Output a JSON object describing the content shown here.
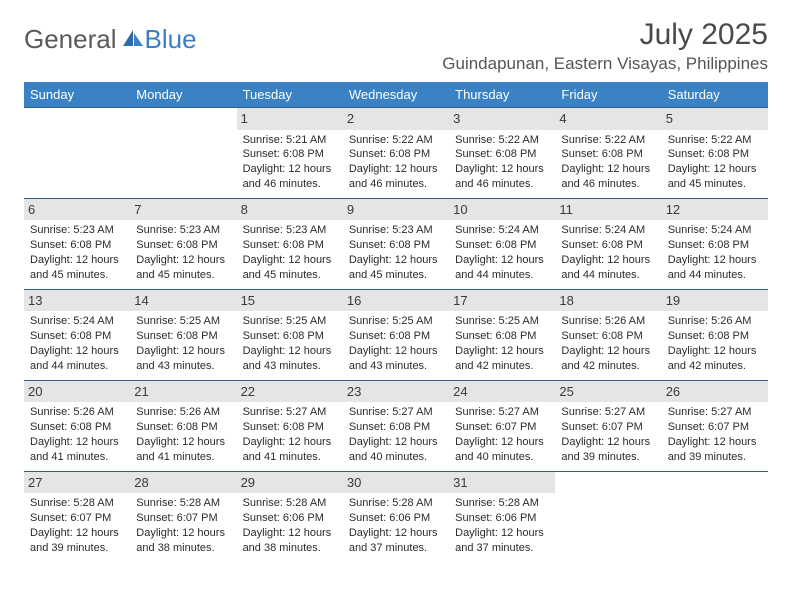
{
  "logo": {
    "text_a": "General",
    "text_b": "Blue"
  },
  "title": "July 2025",
  "location": "Guindapunan, Eastern Visayas, Philippines",
  "colors": {
    "header_bg": "#3b82c4",
    "header_text": "#ffffff",
    "row_border": "#2f5f8a",
    "daynum_bg": "#e5e5e5",
    "text": "#2b2b2b",
    "logo_gray": "#5a5a5a",
    "logo_blue": "#3b7fc4"
  },
  "day_headers": [
    "Sunday",
    "Monday",
    "Tuesday",
    "Wednesday",
    "Thursday",
    "Friday",
    "Saturday"
  ],
  "weeks": [
    [
      null,
      null,
      {
        "n": "1",
        "sr": "Sunrise: 5:21 AM",
        "ss": "Sunset: 6:08 PM",
        "dl": "Daylight: 12 hours and 46 minutes."
      },
      {
        "n": "2",
        "sr": "Sunrise: 5:22 AM",
        "ss": "Sunset: 6:08 PM",
        "dl": "Daylight: 12 hours and 46 minutes."
      },
      {
        "n": "3",
        "sr": "Sunrise: 5:22 AM",
        "ss": "Sunset: 6:08 PM",
        "dl": "Daylight: 12 hours and 46 minutes."
      },
      {
        "n": "4",
        "sr": "Sunrise: 5:22 AM",
        "ss": "Sunset: 6:08 PM",
        "dl": "Daylight: 12 hours and 46 minutes."
      },
      {
        "n": "5",
        "sr": "Sunrise: 5:22 AM",
        "ss": "Sunset: 6:08 PM",
        "dl": "Daylight: 12 hours and 45 minutes."
      }
    ],
    [
      {
        "n": "6",
        "sr": "Sunrise: 5:23 AM",
        "ss": "Sunset: 6:08 PM",
        "dl": "Daylight: 12 hours and 45 minutes."
      },
      {
        "n": "7",
        "sr": "Sunrise: 5:23 AM",
        "ss": "Sunset: 6:08 PM",
        "dl": "Daylight: 12 hours and 45 minutes."
      },
      {
        "n": "8",
        "sr": "Sunrise: 5:23 AM",
        "ss": "Sunset: 6:08 PM",
        "dl": "Daylight: 12 hours and 45 minutes."
      },
      {
        "n": "9",
        "sr": "Sunrise: 5:23 AM",
        "ss": "Sunset: 6:08 PM",
        "dl": "Daylight: 12 hours and 45 minutes."
      },
      {
        "n": "10",
        "sr": "Sunrise: 5:24 AM",
        "ss": "Sunset: 6:08 PM",
        "dl": "Daylight: 12 hours and 44 minutes."
      },
      {
        "n": "11",
        "sr": "Sunrise: 5:24 AM",
        "ss": "Sunset: 6:08 PM",
        "dl": "Daylight: 12 hours and 44 minutes."
      },
      {
        "n": "12",
        "sr": "Sunrise: 5:24 AM",
        "ss": "Sunset: 6:08 PM",
        "dl": "Daylight: 12 hours and 44 minutes."
      }
    ],
    [
      {
        "n": "13",
        "sr": "Sunrise: 5:24 AM",
        "ss": "Sunset: 6:08 PM",
        "dl": "Daylight: 12 hours and 44 minutes."
      },
      {
        "n": "14",
        "sr": "Sunrise: 5:25 AM",
        "ss": "Sunset: 6:08 PM",
        "dl": "Daylight: 12 hours and 43 minutes."
      },
      {
        "n": "15",
        "sr": "Sunrise: 5:25 AM",
        "ss": "Sunset: 6:08 PM",
        "dl": "Daylight: 12 hours and 43 minutes."
      },
      {
        "n": "16",
        "sr": "Sunrise: 5:25 AM",
        "ss": "Sunset: 6:08 PM",
        "dl": "Daylight: 12 hours and 43 minutes."
      },
      {
        "n": "17",
        "sr": "Sunrise: 5:25 AM",
        "ss": "Sunset: 6:08 PM",
        "dl": "Daylight: 12 hours and 42 minutes."
      },
      {
        "n": "18",
        "sr": "Sunrise: 5:26 AM",
        "ss": "Sunset: 6:08 PM",
        "dl": "Daylight: 12 hours and 42 minutes."
      },
      {
        "n": "19",
        "sr": "Sunrise: 5:26 AM",
        "ss": "Sunset: 6:08 PM",
        "dl": "Daylight: 12 hours and 42 minutes."
      }
    ],
    [
      {
        "n": "20",
        "sr": "Sunrise: 5:26 AM",
        "ss": "Sunset: 6:08 PM",
        "dl": "Daylight: 12 hours and 41 minutes."
      },
      {
        "n": "21",
        "sr": "Sunrise: 5:26 AM",
        "ss": "Sunset: 6:08 PM",
        "dl": "Daylight: 12 hours and 41 minutes."
      },
      {
        "n": "22",
        "sr": "Sunrise: 5:27 AM",
        "ss": "Sunset: 6:08 PM",
        "dl": "Daylight: 12 hours and 41 minutes."
      },
      {
        "n": "23",
        "sr": "Sunrise: 5:27 AM",
        "ss": "Sunset: 6:08 PM",
        "dl": "Daylight: 12 hours and 40 minutes."
      },
      {
        "n": "24",
        "sr": "Sunrise: 5:27 AM",
        "ss": "Sunset: 6:07 PM",
        "dl": "Daylight: 12 hours and 40 minutes."
      },
      {
        "n": "25",
        "sr": "Sunrise: 5:27 AM",
        "ss": "Sunset: 6:07 PM",
        "dl": "Daylight: 12 hours and 39 minutes."
      },
      {
        "n": "26",
        "sr": "Sunrise: 5:27 AM",
        "ss": "Sunset: 6:07 PM",
        "dl": "Daylight: 12 hours and 39 minutes."
      }
    ],
    [
      {
        "n": "27",
        "sr": "Sunrise: 5:28 AM",
        "ss": "Sunset: 6:07 PM",
        "dl": "Daylight: 12 hours and 39 minutes."
      },
      {
        "n": "28",
        "sr": "Sunrise: 5:28 AM",
        "ss": "Sunset: 6:07 PM",
        "dl": "Daylight: 12 hours and 38 minutes."
      },
      {
        "n": "29",
        "sr": "Sunrise: 5:28 AM",
        "ss": "Sunset: 6:06 PM",
        "dl": "Daylight: 12 hours and 38 minutes."
      },
      {
        "n": "30",
        "sr": "Sunrise: 5:28 AM",
        "ss": "Sunset: 6:06 PM",
        "dl": "Daylight: 12 hours and 37 minutes."
      },
      {
        "n": "31",
        "sr": "Sunrise: 5:28 AM",
        "ss": "Sunset: 6:06 PM",
        "dl": "Daylight: 12 hours and 37 minutes."
      },
      null,
      null
    ]
  ]
}
